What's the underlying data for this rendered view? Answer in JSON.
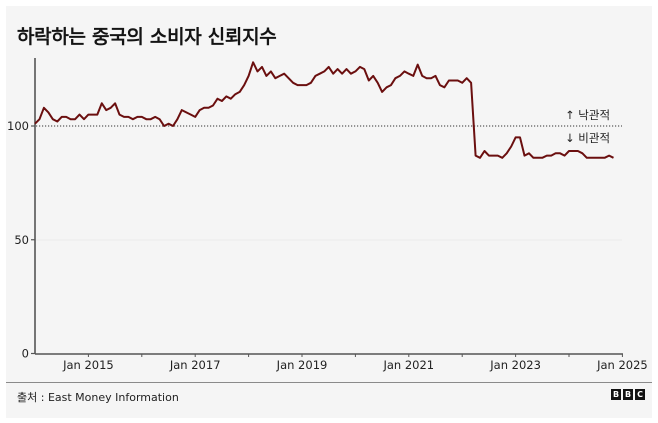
{
  "title": "하락하는 중국의 소비자 신뢰지수",
  "source": "출처 : East Money Information",
  "logo": [
    "B",
    "B",
    "C"
  ],
  "annotations": {
    "above": "↑ 낙관적",
    "below": "↓ 비관적"
  },
  "colors": {
    "line": "#6b0f0f",
    "axis": "#555555",
    "background": "#f5f5f5"
  },
  "chart_data": {
    "type": "line",
    "title": "하락하는 중국의 소비자 신뢰지수",
    "xlabel": "",
    "ylabel": "",
    "ylim": [
      0,
      130
    ],
    "yticks": [
      0,
      50,
      100
    ],
    "xticks": [
      "Jan 2015",
      "Jan 2017",
      "Jan 2019",
      "Jan 2021",
      "Jan 2023",
      "Jan 2025"
    ],
    "reference_line": {
      "value": 100,
      "style": "dotted",
      "labels": [
        "↑ 낙관적",
        "↓ 비관적"
      ]
    },
    "grid": false,
    "legend": null,
    "x_start": "Jan 2014",
    "x_step": "month",
    "series": [
      {
        "name": "소비자 신뢰지수",
        "values": [
          101,
          103,
          108,
          106,
          103,
          102,
          104,
          104,
          103,
          103,
          105,
          103,
          105,
          105,
          105,
          110,
          107,
          108,
          110,
          105,
          104,
          104,
          103,
          104,
          104,
          103,
          103,
          104,
          103,
          100,
          101,
          100,
          103,
          107,
          106,
          105,
          104,
          107,
          108,
          108,
          109,
          112,
          111,
          113,
          112,
          114,
          115,
          118,
          122,
          128,
          124,
          126,
          122,
          124,
          121,
          122,
          123,
          121,
          119,
          118,
          118,
          118,
          119,
          122,
          123,
          124,
          126,
          123,
          125,
          123,
          125,
          123,
          124,
          126,
          125,
          120,
          122,
          119,
          115,
          117,
          118,
          121,
          122,
          124,
          123,
          122,
          127,
          122,
          121,
          121,
          122,
          118,
          117,
          120,
          120,
          120,
          119,
          121,
          119,
          87,
          86,
          89,
          87,
          87,
          87,
          86,
          88,
          91,
          95,
          95,
          87,
          88,
          86,
          86,
          86,
          87,
          87,
          88,
          88,
          87,
          89,
          89,
          89,
          88,
          86,
          86,
          86,
          86,
          86,
          87,
          86
        ]
      }
    ]
  }
}
